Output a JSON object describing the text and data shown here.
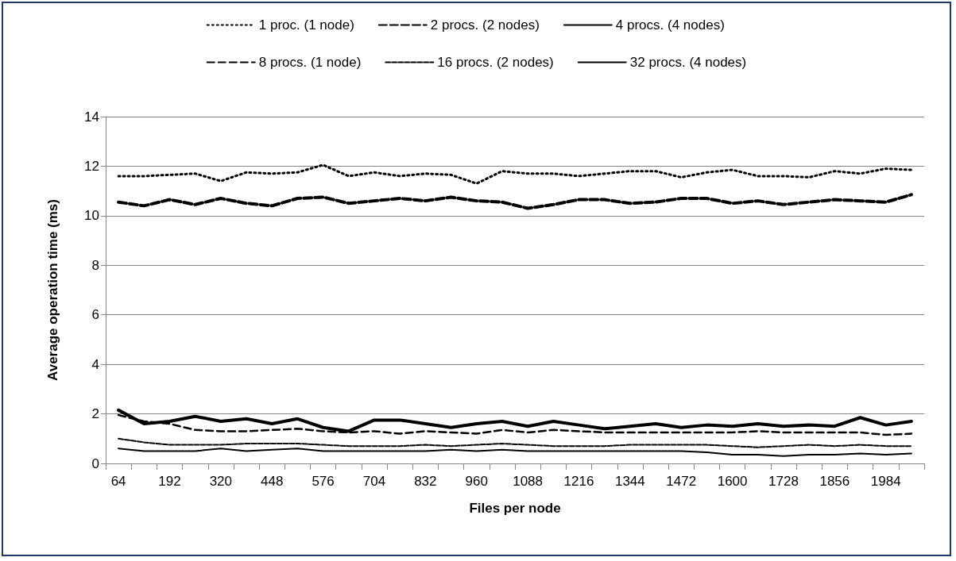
{
  "chart_data": {
    "type": "line",
    "xlabel": "Files per node",
    "ylabel": "Average operation time (ms)",
    "categories": [
      "64",
      null,
      "192",
      null,
      "320",
      null,
      "448",
      null,
      "576",
      null,
      "704",
      null,
      "832",
      null,
      "960",
      null,
      "1088",
      null,
      "1216",
      null,
      "1344",
      null,
      "1472",
      null,
      "1600",
      null,
      "1728",
      null,
      "1856",
      null,
      "1984",
      null
    ],
    "ylim": [
      0,
      14
    ],
    "yticks": [
      0,
      2,
      4,
      6,
      8,
      10,
      12,
      14
    ],
    "grid": "y",
    "legend": "top",
    "marker": "none",
    "series": [
      {
        "name": "1 proc. (1 node)",
        "color": "#000000",
        "line_style": "dotted",
        "values": [
          11.6,
          11.6,
          11.65,
          11.7,
          11.4,
          11.75,
          11.7,
          11.75,
          12.05,
          11.6,
          11.75,
          11.6,
          11.7,
          11.65,
          11.3,
          11.8,
          11.7,
          11.7,
          11.6,
          11.7,
          11.8,
          11.8,
          11.55,
          11.75,
          11.85,
          11.6,
          11.6,
          11.55,
          11.8,
          11.7,
          11.9,
          11.85
        ]
      },
      {
        "name": "2 procs. (2 nodes)",
        "color": "#000000",
        "line_style": "dashed",
        "values": [
          10.55,
          10.4,
          10.65,
          10.45,
          10.7,
          10.5,
          10.4,
          10.7,
          10.75,
          10.5,
          10.6,
          10.7,
          10.6,
          10.75,
          10.6,
          10.55,
          10.3,
          10.45,
          10.65,
          10.65,
          10.5,
          10.55,
          10.7,
          10.7,
          10.5,
          10.6,
          10.45,
          10.55,
          10.65,
          10.6,
          10.55,
          10.85
        ]
      },
      {
        "name": "4 procs. (4 nodes)",
        "color": "#000000",
        "line_style": "solid",
        "values": [
          2.15,
          1.6,
          1.7,
          1.9,
          1.7,
          1.8,
          1.6,
          1.8,
          1.45,
          1.3,
          1.75,
          1.75,
          1.6,
          1.45,
          1.6,
          1.7,
          1.5,
          1.7,
          1.55,
          1.4,
          1.5,
          1.6,
          1.45,
          1.55,
          1.5,
          1.6,
          1.5,
          1.55,
          1.5,
          1.85,
          1.55,
          1.7
        ]
      },
      {
        "name": "8 procs. (1 node)",
        "color": "#000000",
        "line_style": "dashed",
        "values": [
          1.95,
          1.7,
          1.6,
          1.35,
          1.3,
          1.3,
          1.35,
          1.4,
          1.3,
          1.25,
          1.3,
          1.2,
          1.3,
          1.25,
          1.2,
          1.35,
          1.25,
          1.35,
          1.3,
          1.25,
          1.25,
          1.25,
          1.25,
          1.25,
          1.25,
          1.3,
          1.25,
          1.25,
          1.25,
          1.25,
          1.15,
          1.2
        ]
      },
      {
        "name": "16 procs. (2 nodes)",
        "color": "#000000",
        "line_style": "dashed",
        "values": [
          1.0,
          0.85,
          0.75,
          0.75,
          0.75,
          0.8,
          0.8,
          0.8,
          0.75,
          0.7,
          0.7,
          0.7,
          0.75,
          0.7,
          0.75,
          0.8,
          0.75,
          0.7,
          0.7,
          0.7,
          0.75,
          0.75,
          0.75,
          0.75,
          0.7,
          0.65,
          0.7,
          0.75,
          0.7,
          0.75,
          0.7,
          0.7
        ]
      },
      {
        "name": "32 procs. (4 nodes)",
        "color": "#000000",
        "line_style": "solid",
        "values": [
          0.6,
          0.5,
          0.5,
          0.5,
          0.6,
          0.5,
          0.55,
          0.6,
          0.5,
          0.5,
          0.5,
          0.5,
          0.5,
          0.55,
          0.5,
          0.55,
          0.5,
          0.5,
          0.5,
          0.5,
          0.5,
          0.5,
          0.5,
          0.45,
          0.35,
          0.35,
          0.3,
          0.35,
          0.35,
          0.4,
          0.35,
          0.4
        ]
      }
    ]
  }
}
